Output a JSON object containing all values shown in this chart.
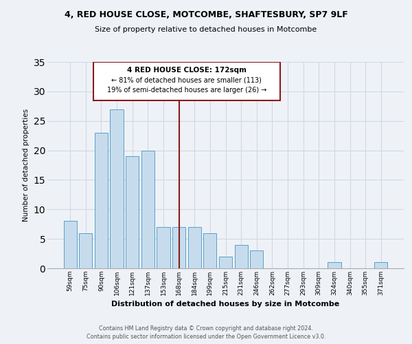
{
  "title1": "4, RED HOUSE CLOSE, MOTCOMBE, SHAFTESBURY, SP7 9LF",
  "title2": "Size of property relative to detached houses in Motcombe",
  "xlabel": "Distribution of detached houses by size in Motcombe",
  "ylabel": "Number of detached properties",
  "bar_labels": [
    "59sqm",
    "75sqm",
    "90sqm",
    "106sqm",
    "121sqm",
    "137sqm",
    "153sqm",
    "168sqm",
    "184sqm",
    "199sqm",
    "215sqm",
    "231sqm",
    "246sqm",
    "262sqm",
    "277sqm",
    "293sqm",
    "309sqm",
    "324sqm",
    "340sqm",
    "355sqm",
    "371sqm"
  ],
  "bar_values": [
    8,
    6,
    23,
    27,
    19,
    20,
    7,
    7,
    7,
    6,
    2,
    4,
    3,
    0,
    0,
    0,
    0,
    1,
    0,
    0,
    1
  ],
  "bar_color": "#c6dcec",
  "bar_edge_color": "#5a9ec9",
  "vline_x": 7,
  "vline_color": "#8b1a1a",
  "annotation_title": "4 RED HOUSE CLOSE: 172sqm",
  "annotation_line1": "← 81% of detached houses are smaller (113)",
  "annotation_line2": "19% of semi-detached houses are larger (26) →",
  "box_color": "#ffffff",
  "box_edge_color": "#8b1a1a",
  "ylim": [
    0,
    35
  ],
  "yticks": [
    0,
    5,
    10,
    15,
    20,
    25,
    30,
    35
  ],
  "footer1": "Contains HM Land Registry data © Crown copyright and database right 2024.",
  "footer2": "Contains public sector information licensed under the Open Government Licence v3.0.",
  "background_color": "#eef2f7",
  "grid_color": "#d0d8e4"
}
